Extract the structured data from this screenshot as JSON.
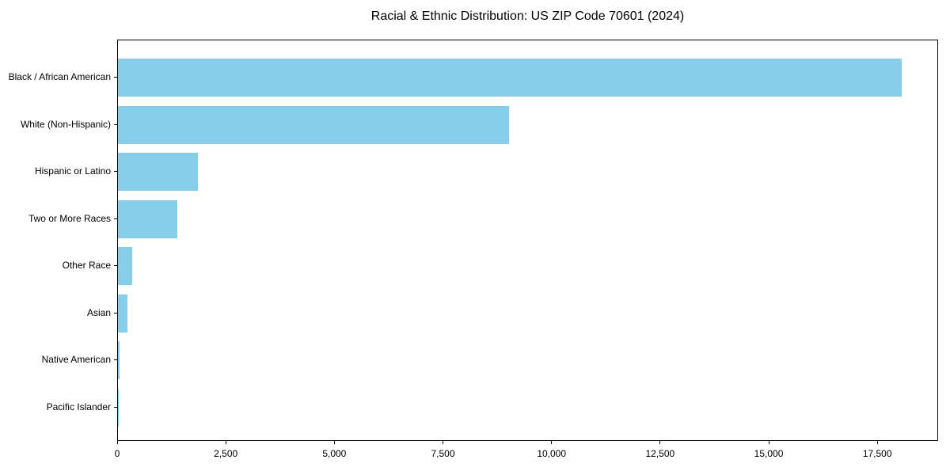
{
  "chart_data": {
    "type": "bar",
    "orientation": "horizontal",
    "title": "Racial & Ethnic Distribution: US ZIP Code 70601 (2024)",
    "categories": [
      "Black / African American",
      "White (Non-Hispanic)",
      "Hispanic or Latino",
      "Two or More Races",
      "Other Race",
      "Asian",
      "Native American",
      "Pacific Islander"
    ],
    "values": [
      18050,
      9000,
      1840,
      1370,
      330,
      220,
      30,
      10
    ],
    "xlabel": "",
    "ylabel": "",
    "xlim": [
      0,
      18900
    ],
    "xticks": [
      0,
      2500,
      5000,
      7500,
      10000,
      12500,
      15000,
      17500
    ],
    "xtick_labels": [
      "0",
      "2,500",
      "5,000",
      "7,500",
      "10,000",
      "12,500",
      "15,000",
      "17,500"
    ],
    "grid": false,
    "legend_position": "none",
    "bar_color": "#87CEEB",
    "axis_color": "#000000",
    "text_color": "#000000",
    "background_color": "#ffffff"
  }
}
